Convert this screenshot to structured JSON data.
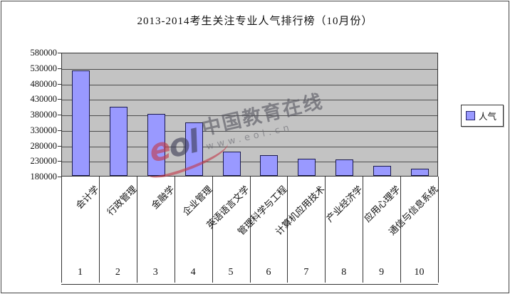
{
  "title": "2013-2014考生关注专业人气排行榜（10月份）",
  "legend": {
    "label": "人气"
  },
  "watermark": {
    "logo": "eol",
    "logo_letters": [
      "e",
      "o",
      "l"
    ],
    "brand": "中国教育在线",
    "url": "www.eol.cn"
  },
  "colors": {
    "bar_fill": "#9999FF",
    "bar_border": "#1A1A4E",
    "plot_bg": "#C3C3C3",
    "gridline": "#4D4D4D",
    "axis_line": "#333333",
    "watermark_red": "#C23B4B",
    "watermark_dark": "#3C3C55"
  },
  "y_axis": {
    "tick_labels": [
      "580000",
      "530000",
      "480000",
      "430000",
      "380000",
      "330000",
      "280000",
      "230000",
      "180000"
    ]
  },
  "x_axis": {
    "rank_labels": [
      "1",
      "2",
      "3",
      "4",
      "5",
      "6",
      "7",
      "8",
      "9",
      "10"
    ]
  },
  "chart_data": {
    "type": "bar",
    "title": "2013-2014考生关注专业人气排行榜（10月份）",
    "categories": [
      "会计学",
      "行政管理",
      "金融学",
      "企业管理",
      "英语语言文学",
      "管理科学与工程",
      "计算机应用技术",
      "产业经济学",
      "应用心理学",
      "通信与信息系统"
    ],
    "values": [
      520000,
      402000,
      379000,
      352000,
      258000,
      247000,
      235000,
      232000,
      213000,
      203000
    ],
    "series_name": "人气",
    "xlabel": "",
    "ylabel": "",
    "ylim": [
      180000,
      580000
    ],
    "y_tick_step": 50000,
    "grid": true,
    "legend_position": "right",
    "plot_background": "gray"
  }
}
